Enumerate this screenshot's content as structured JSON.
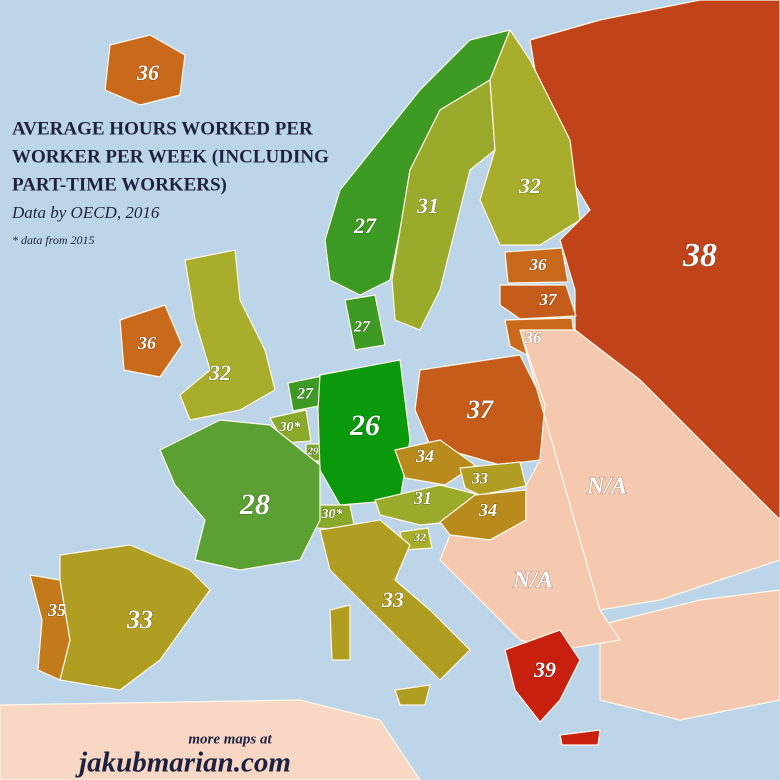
{
  "title": [
    "AVERAGE HOURS WORKED PER",
    "WORKER PER WEEK (INCLUDING",
    "PART-TIME WORKERS)"
  ],
  "subtitle": "Data by OECD, 2016",
  "footnote": "* data from 2015",
  "footer": {
    "note": "more maps at",
    "site": "jakubmarian.com"
  },
  "regions": [
    {
      "label": 36,
      "color": "#c9691c"
    },
    {
      "label": 38,
      "color": "#c1431a"
    },
    {
      "label": 27,
      "color": "#3d9a22"
    },
    {
      "label": 31,
      "color": "#9aab2c"
    },
    {
      "label": 32,
      "color": "#a8ad2c"
    },
    {
      "label": 36,
      "color": "#c9691c"
    },
    {
      "label": 37,
      "color": "#c65c1a"
    },
    {
      "label": 36,
      "color": "#c9691c"
    },
    {
      "label": 27,
      "color": "#3d9a22"
    },
    {
      "label": 36,
      "color": "#c9691c"
    },
    {
      "label": 32,
      "color": "#a8ad2c"
    },
    {
      "label": 27,
      "color": "#3d9a22"
    },
    {
      "label": "30*",
      "color": "#8aa82a"
    },
    {
      "label": 29,
      "color": "#78a52a"
    },
    {
      "label": 26,
      "color": "#0a990a"
    },
    {
      "label": 37,
      "color": "#c65c1a"
    },
    {
      "label": 34,
      "color": "#b98a1c"
    },
    {
      "label": 33,
      "color": "#b09e22"
    },
    {
      "label": 31,
      "color": "#9aab2c"
    },
    {
      "label": 34,
      "color": "#b98a1c"
    },
    {
      "label": "30*",
      "color": "#8aa82a"
    },
    {
      "label": 32,
      "color": "#a8ad2c"
    },
    {
      "label": 28,
      "color": "#5aa032"
    },
    {
      "label": "N/A",
      "color": "#f5c9b0"
    },
    {
      "label": "N/A",
      "color": "#f5c9b0"
    },
    {
      "label": 35,
      "color": "#c27a1a"
    },
    {
      "label": 33,
      "color": "#b09e22"
    },
    {
      "label": 33,
      "color": "#b09e22"
    },
    {
      "label": 39,
      "color": "#c8200e"
    }
  ]
}
